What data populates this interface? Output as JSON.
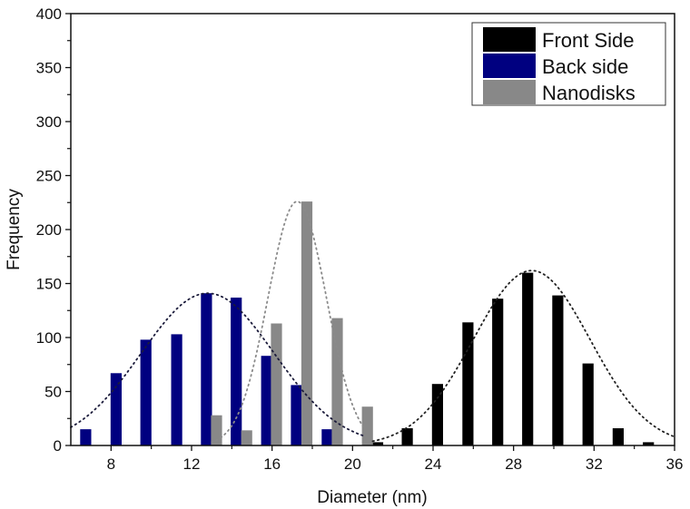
{
  "chart_data": {
    "type": "bar",
    "title": "",
    "xlabel": "Diameter (nm)",
    "ylabel": "Frequency",
    "xlim": [
      6,
      36
    ],
    "ylim": [
      0,
      400
    ],
    "xticks": [
      8,
      12,
      16,
      20,
      24,
      28,
      32,
      36
    ],
    "xminor": [
      10,
      14,
      18,
      22,
      26,
      30,
      34
    ],
    "yticks": [
      0,
      50,
      100,
      150,
      200,
      250,
      300,
      350,
      400
    ],
    "yminor": [
      25,
      75,
      125,
      175,
      225,
      275,
      325,
      375
    ],
    "grid": false,
    "legend_position": "upper right",
    "bar_width_nm": 0.55,
    "series": [
      {
        "name": "Front Side",
        "color": "#000000",
        "x": [
          21.25,
          22.72,
          24.22,
          25.73,
          27.21,
          28.7,
          30.2,
          31.7,
          33.2,
          34.7
        ],
        "values": [
          3,
          16,
          57,
          114,
          136,
          160,
          139,
          76,
          16,
          3
        ],
        "fit": {
          "type": "gaussian",
          "mean": 28.9,
          "sd": 2.9,
          "peak": 162,
          "color": "#222222",
          "range": [
            21.0,
            36.0
          ]
        }
      },
      {
        "name": "Back side",
        "color": "#000080",
        "x": [
          6.74,
          8.25,
          9.73,
          11.26,
          12.74,
          14.22,
          15.73,
          17.21,
          18.74
        ],
        "values": [
          15,
          67,
          98,
          103,
          141,
          137,
          83,
          56,
          15
        ],
        "fit": {
          "type": "gaussian",
          "mean": 12.8,
          "sd": 3.3,
          "peak": 141,
          "color": "#1a1a3a",
          "range": [
            6.0,
            20.5
          ]
        }
      },
      {
        "name": "Nanodisks",
        "color": "#888888",
        "x": [
          13.24,
          14.74,
          16.22,
          17.73,
          19.24,
          20.74
        ],
        "values": [
          28,
          14,
          113,
          226,
          118,
          36
        ],
        "fit": {
          "type": "gaussian",
          "mean": 17.25,
          "sd": 1.45,
          "peak": 226,
          "color": "#8a8a8a",
          "range": [
            13.0,
            20.6
          ]
        }
      }
    ]
  },
  "legend": {
    "items": [
      {
        "label": "Front Side",
        "color": "#000000"
      },
      {
        "label": "Back side",
        "color": "#000080"
      },
      {
        "label": "Nanodisks",
        "color": "#888888"
      }
    ]
  },
  "axes": {
    "x_title": "Diameter (nm)",
    "y_title": "Frequency"
  }
}
